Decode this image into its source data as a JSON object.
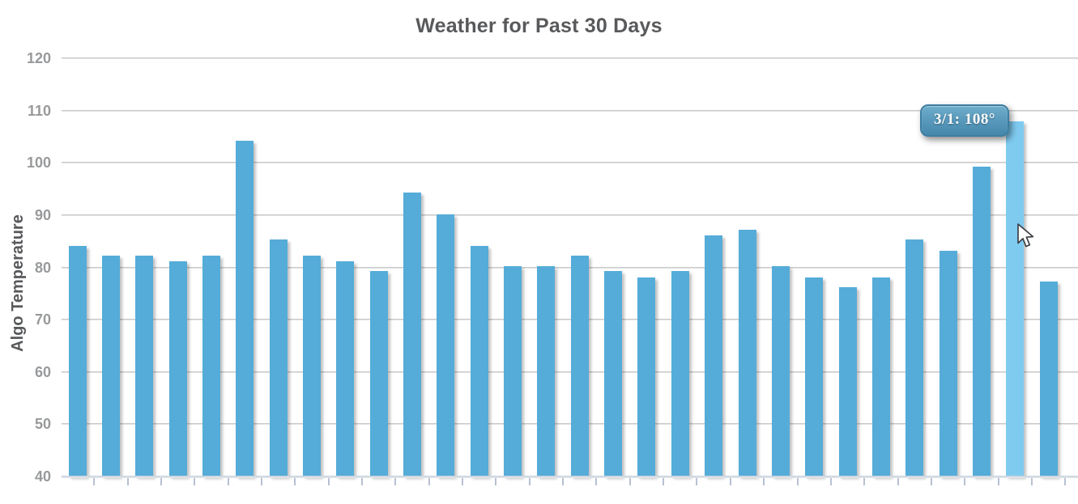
{
  "title": "Weather for Past 30 Days",
  "tooltip": {
    "text": "3/1: 108°"
  },
  "colors": {
    "bar": "#55acd8",
    "bar_highlight": "#7fcbf0",
    "title_text": "#58595b",
    "axis_label_text": "#58595b",
    "tick_label_text": "#97999b",
    "gridline": "#c6c6c6",
    "axis_line": "#c6cedb",
    "tooltip_top": "#6fadca",
    "tooltip_bottom": "#4588ac",
    "tooltip_border": "#3d7ea1",
    "tooltip_text": "#ffffff"
  },
  "chart_data": {
    "type": "bar",
    "title": "Weather for Past 30 Days",
    "xlabel": "",
    "ylabel": "Algo Temperature",
    "ylim": [
      40,
      120
    ],
    "yticks": [
      40,
      50,
      60,
      70,
      80,
      90,
      100,
      110,
      120
    ],
    "grid": "horizontal-only",
    "x_tick_labels": "none",
    "legend": "none",
    "values": [
      84.1,
      82.3,
      82.3,
      81.2,
      82.3,
      104.2,
      85.3,
      82.3,
      81.2,
      79.3,
      94.3,
      90.2,
      84.1,
      80.2,
      80.2,
      82.2,
      79.3,
      78.1,
      79.3,
      86.1,
      87.2,
      80.2,
      78.1,
      76.2,
      78.1,
      85.3,
      83.2,
      99.2,
      108,
      77.3
    ],
    "highlight_index": 28,
    "highlight_label": "3/1",
    "highlight_value": 108,
    "tooltip_text": "3/1: 108°"
  }
}
